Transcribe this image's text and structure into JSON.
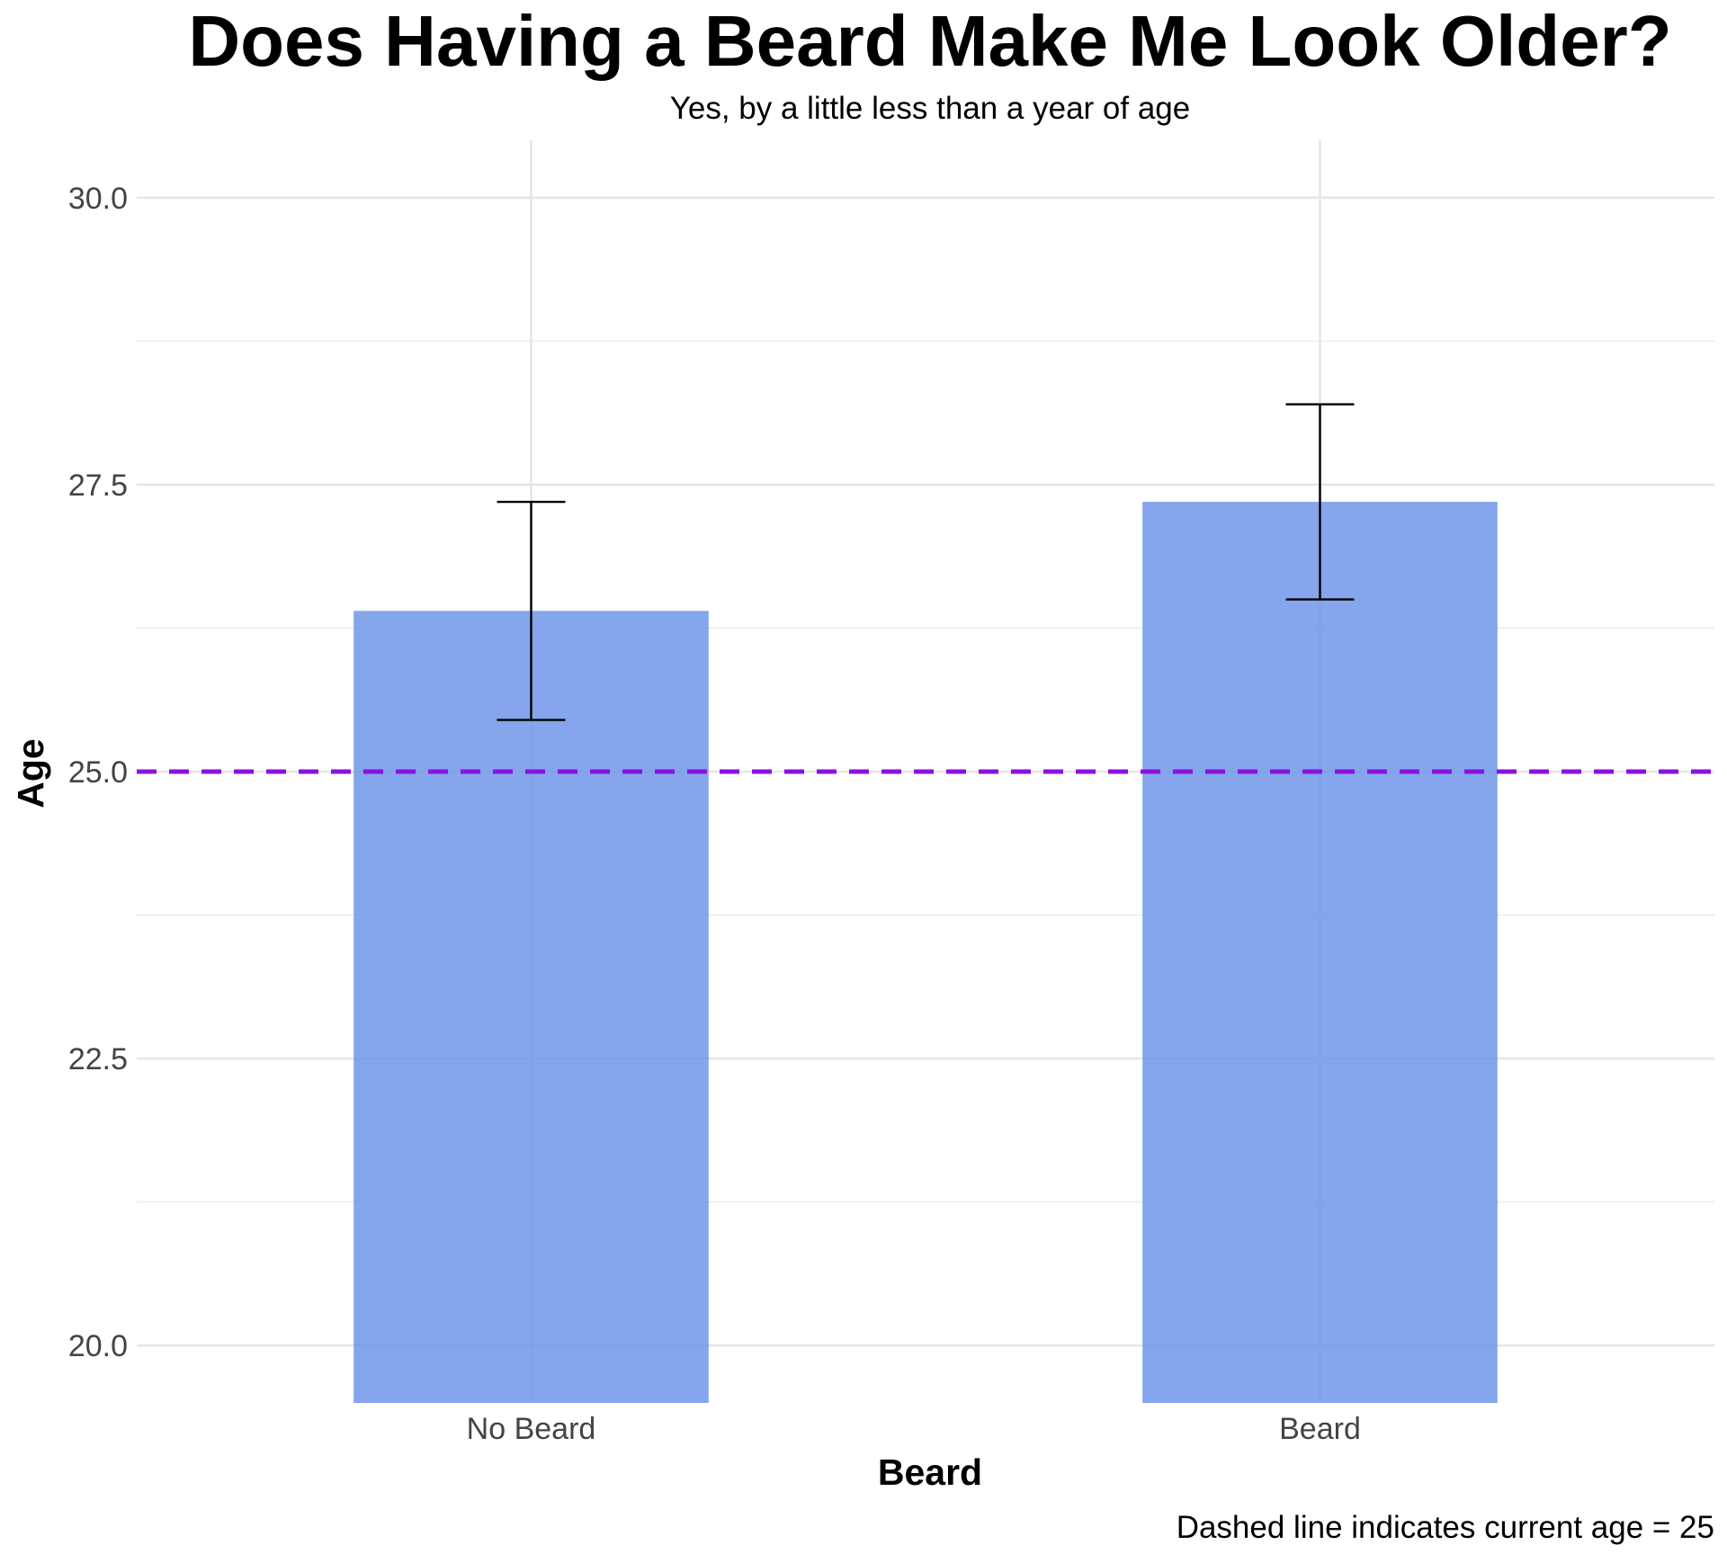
{
  "chart_data": {
    "type": "bar",
    "title": "Does Having a Beard Make Me Look Older?",
    "subtitle": "Yes, by a little less than a year of age",
    "xlabel": "Beard",
    "ylabel": "Age",
    "caption": "Dashed line indicates current age = 25",
    "categories": [
      "No Beard",
      "Beard"
    ],
    "values": [
      26.4,
      27.35
    ],
    "error_low": [
      25.45,
      26.5
    ],
    "error_high": [
      27.35,
      28.2
    ],
    "reference_line": 25,
    "ylim": [
      19.5,
      30.5
    ],
    "yticks": [
      20.0,
      22.5,
      25.0,
      27.5,
      30.0
    ],
    "ytick_labels": [
      "20.0",
      "22.5",
      "25.0",
      "27.5",
      "30.0"
    ],
    "grid": true,
    "colors": {
      "bar": "#6a91e8",
      "reference_line": "#8a12e0",
      "error_bar": "#000000",
      "grid": "#e6e6e6"
    }
  }
}
